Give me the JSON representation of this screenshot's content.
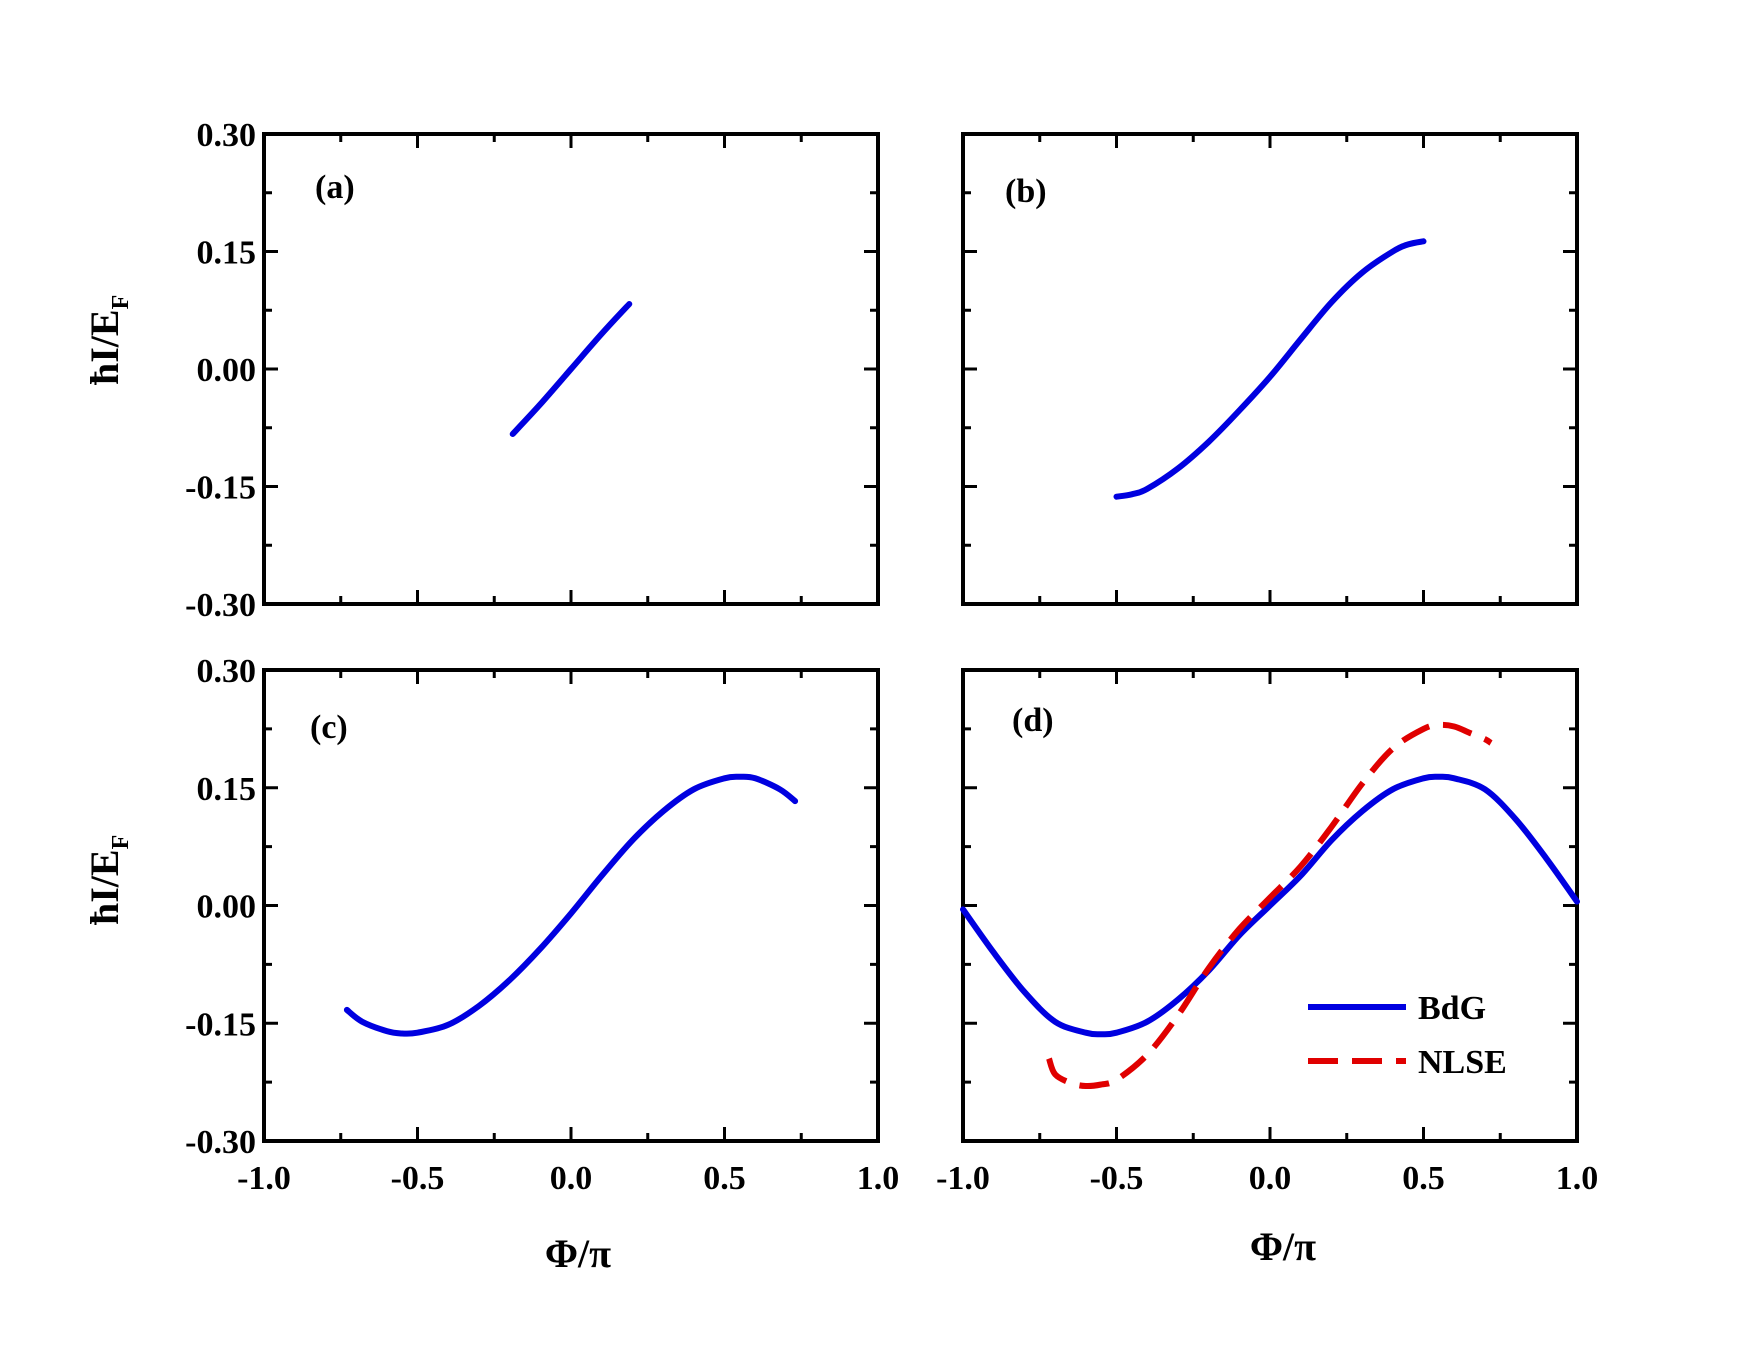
{
  "figure": {
    "ylabel_main": "ħI/E",
    "ylabel_sub": "F",
    "xlabel": "Φ/π"
  },
  "chart_data": [
    {
      "type": "line",
      "panel_label": "(a)",
      "xlim": [
        -1.0,
        1.0
      ],
      "ylim": [
        -0.3,
        0.3
      ],
      "xticks": [
        "-1.0",
        "-0.5",
        "0.0",
        "0.5",
        "1.0"
      ],
      "yticks": [
        "-0.30",
        "-0.15",
        "0.00",
        "0.15",
        "0.30"
      ],
      "series": [
        {
          "color": "#0000e0",
          "style": "solid",
          "x": [
            -0.19,
            -0.1,
            0.0,
            0.1,
            0.19
          ],
          "y": [
            -0.083,
            -0.045,
            0.0,
            0.045,
            0.083
          ]
        }
      ]
    },
    {
      "type": "line",
      "panel_label": "(b)",
      "xlim": [
        -1.0,
        1.0
      ],
      "ylim": [
        -0.3,
        0.3
      ],
      "xticks": [
        "-1.0",
        "-0.5",
        "0.0",
        "0.5",
        "1.0"
      ],
      "yticks": [
        "-0.30",
        "-0.15",
        "0.00",
        "0.15",
        "0.30"
      ],
      "series": [
        {
          "color": "#0000e0",
          "style": "solid",
          "x": [
            -0.5,
            -0.45,
            -0.4,
            -0.3,
            -0.2,
            -0.1,
            0.0,
            0.1,
            0.2,
            0.3,
            0.4,
            0.45,
            0.5
          ],
          "y": [
            -0.163,
            -0.16,
            -0.153,
            -0.127,
            -0.093,
            -0.053,
            -0.01,
            0.038,
            0.085,
            0.123,
            0.15,
            0.159,
            0.163
          ]
        }
      ]
    },
    {
      "type": "line",
      "panel_label": "(c)",
      "xlim": [
        -1.0,
        1.0
      ],
      "ylim": [
        -0.3,
        0.3
      ],
      "xticks": [
        "-1.0",
        "-0.5",
        "0.0",
        "0.5",
        "1.0"
      ],
      "yticks": [
        "-0.30",
        "-0.15",
        "0.00",
        "0.15",
        "0.30"
      ],
      "series": [
        {
          "color": "#0000e0",
          "style": "solid",
          "x": [
            -0.73,
            -0.68,
            -0.6,
            -0.55,
            -0.5,
            -0.4,
            -0.3,
            -0.2,
            -0.1,
            0.0,
            0.1,
            0.2,
            0.3,
            0.4,
            0.5,
            0.55,
            0.6,
            0.68,
            0.73
          ],
          "y": [
            -0.133,
            -0.148,
            -0.16,
            -0.163,
            -0.162,
            -0.152,
            -0.128,
            -0.095,
            -0.055,
            -0.01,
            0.038,
            0.083,
            0.12,
            0.148,
            0.162,
            0.164,
            0.162,
            0.148,
            0.133
          ]
        }
      ]
    },
    {
      "type": "line",
      "panel_label": "(d)",
      "xlim": [
        -1.0,
        1.0
      ],
      "ylim": [
        -0.3,
        0.3
      ],
      "xticks": [
        "-1.0",
        "-0.5",
        "0.0",
        "0.5",
        "1.0"
      ],
      "yticks": [
        "-0.30",
        "-0.15",
        "0.00",
        "0.15",
        "0.30"
      ],
      "legend": "bottom-right",
      "series": [
        {
          "name": "BdG",
          "color": "#0000e0",
          "style": "solid",
          "x": [
            -1.0,
            -0.9,
            -0.8,
            -0.7,
            -0.6,
            -0.55,
            -0.5,
            -0.4,
            -0.3,
            -0.2,
            -0.1,
            0.0,
            0.1,
            0.2,
            0.3,
            0.4,
            0.5,
            0.55,
            0.6,
            0.7,
            0.8,
            0.9,
            1.0
          ],
          "y": [
            -0.005,
            -0.06,
            -0.11,
            -0.148,
            -0.162,
            -0.164,
            -0.162,
            -0.148,
            -0.12,
            -0.083,
            -0.038,
            0.0,
            0.038,
            0.083,
            0.12,
            0.148,
            0.162,
            0.164,
            0.162,
            0.148,
            0.11,
            0.06,
            0.005
          ]
        },
        {
          "name": "NLSE",
          "color": "#e00000",
          "style": "dashed",
          "x": [
            -0.72,
            -0.7,
            -0.65,
            -0.6,
            -0.55,
            -0.5,
            -0.4,
            -0.3,
            -0.2,
            -0.1,
            0.0,
            0.1,
            0.2,
            0.3,
            0.4,
            0.5,
            0.55,
            0.6,
            0.65,
            0.7,
            0.72
          ],
          "y": [
            -0.195,
            -0.215,
            -0.226,
            -0.23,
            -0.228,
            -0.222,
            -0.19,
            -0.14,
            -0.08,
            -0.03,
            0.01,
            0.05,
            0.1,
            0.155,
            0.2,
            0.225,
            0.23,
            0.228,
            0.22,
            0.212,
            0.207
          ]
        }
      ]
    }
  ]
}
